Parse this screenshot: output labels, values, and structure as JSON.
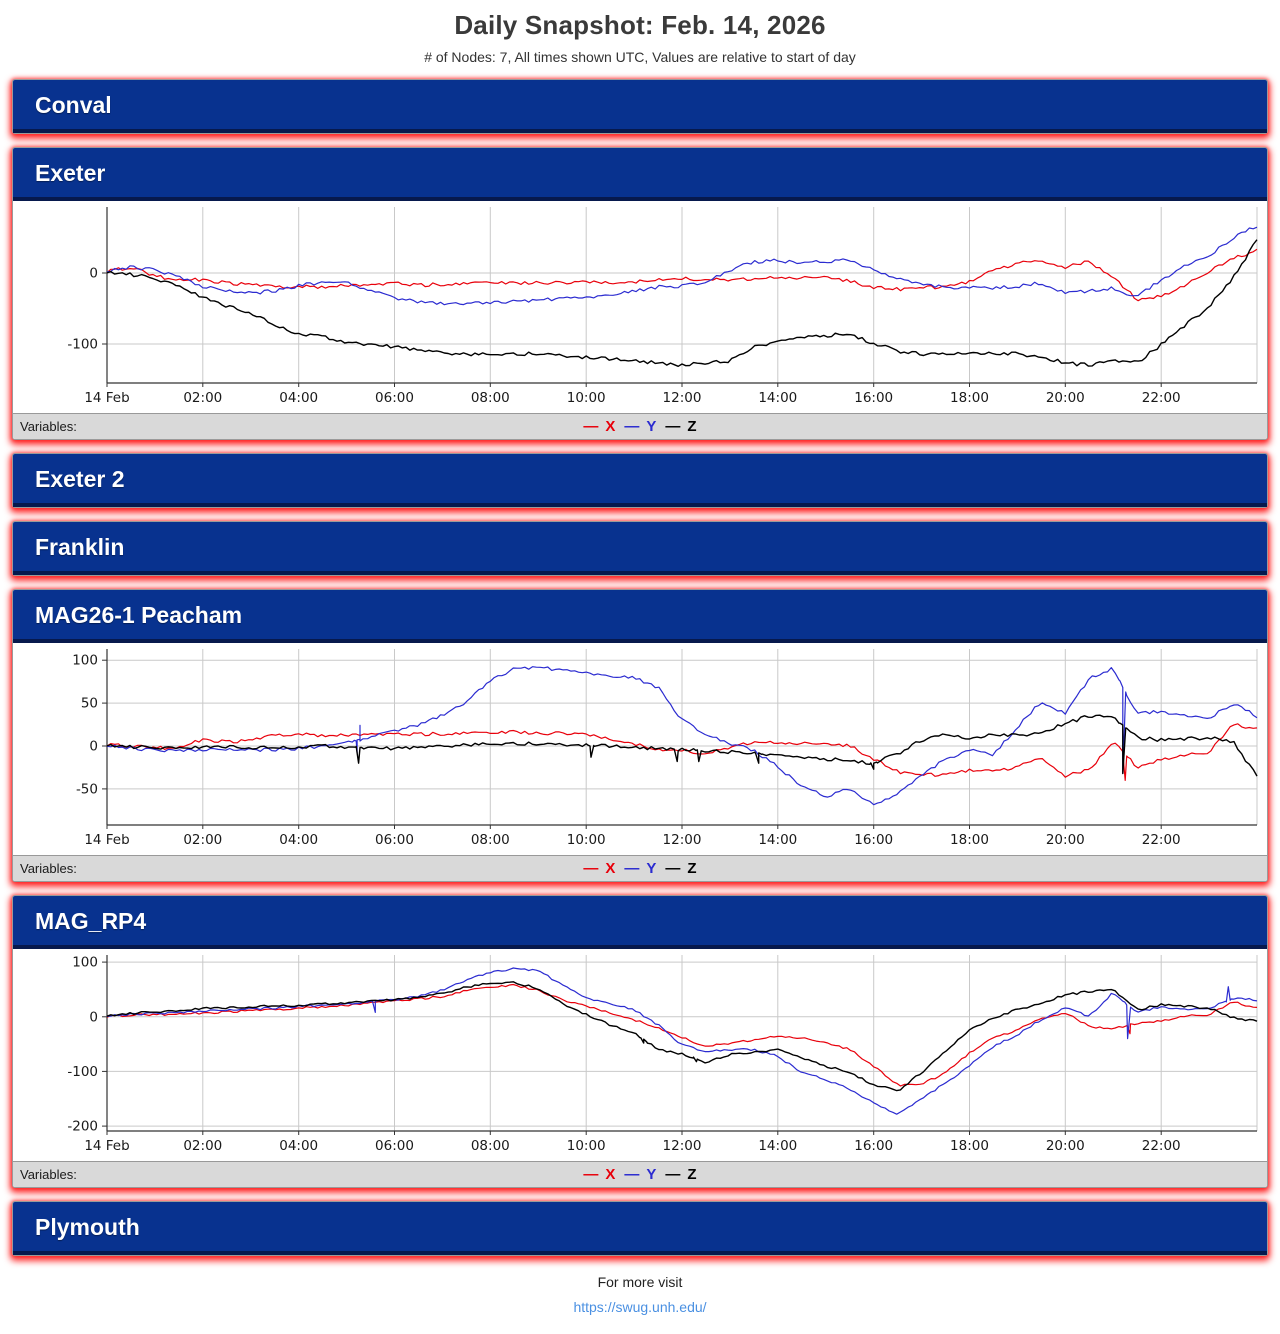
{
  "header": {
    "title": "Daily Snapshot: Feb. 14, 2026",
    "subtitle": "# of Nodes: 7, All times shown UTC, Values are relative to start of day"
  },
  "variables_label": "Variables:",
  "legend": [
    {
      "dash": "—",
      "label": "X",
      "color": "#e8000b"
    },
    {
      "dash": "—",
      "label": "Y",
      "color": "#2b2bd0"
    },
    {
      "dash": "—",
      "label": "Z",
      "color": "#000000"
    }
  ],
  "colors": {
    "header_navy": "#08328f",
    "header_strip": "#07194d",
    "glow_red": "#ff0000",
    "grid": "#c9c9c9",
    "spine": "#333333",
    "link_blue": "#4a90e2"
  },
  "panels": [
    {
      "name": "Conval",
      "collapsed": true
    },
    {
      "name": "Exeter",
      "collapsed": false,
      "chart_index": 0
    },
    {
      "name": "Exeter 2",
      "collapsed": true
    },
    {
      "name": "Franklin",
      "collapsed": true
    },
    {
      "name": "MAG26-1 Peacham",
      "collapsed": false,
      "chart_index": 1
    },
    {
      "name": "MAG_RP4",
      "collapsed": false,
      "chart_index": 2
    },
    {
      "name": "Plymouth",
      "collapsed": true
    }
  ],
  "footer": {
    "text": "For more visit",
    "link": "https://swug.unh.edu/"
  },
  "chart_data": [
    {
      "type": "line",
      "node": "Exeter",
      "xlabel": "",
      "ylabel": "",
      "x_start_hour": 0,
      "x_step_hours": 0.5,
      "xticks": [
        {
          "hour": 0,
          "label": "14 Feb"
        },
        {
          "hour": 2,
          "label": "02:00"
        },
        {
          "hour": 4,
          "label": "04:00"
        },
        {
          "hour": 6,
          "label": "06:00"
        },
        {
          "hour": 8,
          "label": "08:00"
        },
        {
          "hour": 10,
          "label": "10:00"
        },
        {
          "hour": 12,
          "label": "12:00"
        },
        {
          "hour": 14,
          "label": "14:00"
        },
        {
          "hour": 16,
          "label": "16:00"
        },
        {
          "hour": 18,
          "label": "18:00"
        },
        {
          "hour": 20,
          "label": "20:00"
        },
        {
          "hour": 22,
          "label": "22:00"
        }
      ],
      "yticks": [
        0,
        -100
      ],
      "ylim": [
        -155,
        93
      ],
      "noise_amplitude": 2.5,
      "series": [
        {
          "name": "X",
          "color": "#e8000b",
          "values": [
            3,
            8,
            -4,
            -10,
            -9,
            -14,
            -17,
            -19,
            -19,
            -20,
            -17,
            -18,
            -15,
            -17,
            -16,
            -15,
            -12,
            -14,
            -13,
            -14,
            -13,
            -14,
            -12,
            -10,
            -8,
            -9,
            -9,
            -8,
            -7,
            -7,
            -6,
            -12,
            -20,
            -23,
            -21,
            -19,
            -12,
            3,
            14,
            18,
            8,
            16,
            -5,
            -38,
            -33,
            -18,
            3,
            20,
            32
          ]
        },
        {
          "name": "Y",
          "color": "#2b2bd0",
          "values": [
            2,
            8,
            4,
            -6,
            -20,
            -25,
            -29,
            -25,
            -18,
            -13,
            -12,
            -25,
            -35,
            -40,
            -43,
            -42,
            -41,
            -40,
            -38,
            -36,
            -35,
            -30,
            -25,
            -20,
            -19,
            -12,
            4,
            16,
            18,
            14,
            16,
            18,
            5,
            -7,
            -17,
            -20,
            -21,
            -21,
            -19,
            -14,
            -29,
            -25,
            -21,
            -34,
            -9,
            10,
            25,
            50,
            67
          ]
        },
        {
          "name": "Z",
          "color": "#000000",
          "values": [
            0,
            -2,
            -8,
            -18,
            -34,
            -47,
            -56,
            -74,
            -85,
            -90,
            -97,
            -101,
            -104,
            -108,
            -112,
            -115,
            -115,
            -114,
            -113,
            -116,
            -119,
            -121,
            -124,
            -127,
            -130,
            -127,
            -124,
            -105,
            -97,
            -90,
            -88,
            -86,
            -99,
            -110,
            -114,
            -114,
            -113,
            -113,
            -114,
            -118,
            -127,
            -130,
            -124,
            -126,
            -101,
            -74,
            -47,
            -7,
            47
          ]
        }
      ]
    },
    {
      "type": "line",
      "node": "MAG26-1 Peacham",
      "xlabel": "",
      "ylabel": "",
      "x_start_hour": 0,
      "x_step_hours": 0.5,
      "xticks": [
        {
          "hour": 0,
          "label": "14 Feb"
        },
        {
          "hour": 2,
          "label": "02:00"
        },
        {
          "hour": 4,
          "label": "04:00"
        },
        {
          "hour": 6,
          "label": "06:00"
        },
        {
          "hour": 8,
          "label": "08:00"
        },
        {
          "hour": 10,
          "label": "10:00"
        },
        {
          "hour": 12,
          "label": "12:00"
        },
        {
          "hour": 14,
          "label": "14:00"
        },
        {
          "hour": 16,
          "label": "16:00"
        },
        {
          "hour": 18,
          "label": "18:00"
        },
        {
          "hour": 20,
          "label": "20:00"
        },
        {
          "hour": 22,
          "label": "22:00"
        }
      ],
      "yticks": [
        100,
        50,
        0,
        -50
      ],
      "ylim": [
        -92,
        113
      ],
      "noise_amplitude": 2,
      "series": [
        {
          "name": "X",
          "color": "#e8000b",
          "values": [
            2,
            0,
            -2,
            -2,
            8,
            5,
            6,
            13,
            14,
            12,
            13,
            13,
            13,
            14,
            14,
            15,
            16,
            17,
            15,
            15,
            13,
            8,
            3,
            -5,
            -5,
            -9,
            -1,
            5,
            3,
            3,
            2,
            0,
            -15,
            -30,
            -34,
            -33,
            -28,
            -30,
            -24,
            -13,
            -35,
            -28,
            6,
            -25,
            -16,
            -11,
            -7,
            25,
            20
          ],
          "spikes": [
            {
              "h": 21.25,
              "v": -40
            }
          ]
        },
        {
          "name": "Y",
          "color": "#2b2bd0",
          "values": [
            0,
            -3,
            -5,
            -6,
            -5,
            -4,
            -5,
            -4,
            -3,
            0,
            5,
            10,
            18,
            25,
            36,
            52,
            77,
            90,
            92,
            88,
            85,
            82,
            80,
            68,
            30,
            14,
            3,
            -5,
            -24,
            -47,
            -59,
            -50,
            -68,
            -55,
            -35,
            -15,
            -5,
            -10,
            22,
            52,
            37,
            79,
            91,
            37,
            41,
            35,
            33,
            50,
            35
          ],
          "spikes": [
            {
              "h": 5.22,
              "v": -8
            },
            {
              "h": 5.28,
              "v": 24
            },
            {
              "h": 21.2,
              "v": -32
            }
          ]
        },
        {
          "name": "Z",
          "color": "#000000",
          "values": [
            0,
            -1,
            -2,
            -2,
            -1,
            -1,
            -2,
            -2,
            -1,
            0,
            -1,
            -2,
            -3,
            -1,
            0,
            1,
            2,
            3,
            3,
            2,
            1,
            0,
            -2,
            -3,
            -4,
            -6,
            -7,
            -9,
            -11,
            -13,
            -15,
            -17,
            -20,
            -9,
            7,
            14,
            8,
            14,
            12,
            16,
            26,
            35,
            33,
            10,
            7,
            8,
            10,
            5,
            -35
          ],
          "spikes": [
            {
              "h": 5.25,
              "v": -20
            },
            {
              "h": 10.1,
              "v": -13
            },
            {
              "h": 11.9,
              "v": -18
            },
            {
              "h": 12.35,
              "v": -18
            },
            {
              "h": 13.6,
              "v": -20
            },
            {
              "h": 16.0,
              "v": -27
            },
            {
              "h": 21.2,
              "v": -32
            }
          ]
        }
      ]
    },
    {
      "type": "line",
      "node": "MAG_RP4",
      "xlabel": "",
      "ylabel": "",
      "x_start_hour": 0,
      "x_step_hours": 0.5,
      "xticks": [
        {
          "hour": 0,
          "label": "14 Feb"
        },
        {
          "hour": 2,
          "label": "02:00"
        },
        {
          "hour": 4,
          "label": "04:00"
        },
        {
          "hour": 6,
          "label": "06:00"
        },
        {
          "hour": 8,
          "label": "08:00"
        },
        {
          "hour": 10,
          "label": "10:00"
        },
        {
          "hour": 12,
          "label": "12:00"
        },
        {
          "hour": 14,
          "label": "14:00"
        },
        {
          "hour": 16,
          "label": "16:00"
        },
        {
          "hour": 18,
          "label": "18:00"
        },
        {
          "hour": 20,
          "label": "20:00"
        },
        {
          "hour": 22,
          "label": "22:00"
        }
      ],
      "yticks": [
        100,
        0,
        -100,
        -200
      ],
      "ylim": [
        -209,
        113
      ],
      "noise_amplitude": 2,
      "series": [
        {
          "name": "X",
          "color": "#e8000b",
          "values": [
            1,
            3,
            4,
            5,
            7,
            9,
            11,
            13,
            16,
            18,
            21,
            25,
            28,
            33,
            37,
            48,
            55,
            58,
            49,
            31,
            19,
            7,
            -5,
            -21,
            -38,
            -54,
            -48,
            -42,
            -36,
            -39,
            -48,
            -60,
            -90,
            -125,
            -124,
            -102,
            -66,
            -39,
            -24,
            -2,
            7,
            -18,
            -21,
            -12,
            -8,
            1,
            4,
            27,
            16
          ],
          "spikes": [
            {
              "h": 21.35,
              "v": -31
            }
          ]
        },
        {
          "name": "Y",
          "color": "#2b2bd0",
          "values": [
            1,
            4,
            6,
            7,
            10,
            12,
            14,
            16,
            19,
            21,
            24,
            28,
            31,
            38,
            49,
            68,
            82,
            88,
            85,
            58,
            34,
            25,
            13,
            -15,
            -52,
            -63,
            -60,
            -60,
            -72,
            -102,
            -115,
            -133,
            -157,
            -178,
            -151,
            -121,
            -90,
            -54,
            -33,
            -5,
            16,
            1,
            45,
            7,
            19,
            13,
            16,
            34,
            31
          ],
          "spikes": [
            {
              "h": 5.6,
              "v": 8
            },
            {
              "h": 21.3,
              "v": -40
            },
            {
              "h": 23.4,
              "v": 55
            }
          ]
        },
        {
          "name": "Z",
          "color": "#000000",
          "values": [
            1,
            6,
            9,
            11,
            16,
            16,
            18,
            20,
            21,
            23,
            26,
            29,
            31,
            36,
            43,
            54,
            61,
            63,
            52,
            25,
            4,
            -15,
            -30,
            -60,
            -68,
            -84,
            -69,
            -66,
            -60,
            -75,
            -90,
            -102,
            -124,
            -136,
            -102,
            -63,
            -24,
            -2,
            13,
            25,
            40,
            46,
            49,
            13,
            22,
            19,
            16,
            -2,
            -8
          ],
          "spikes": [
            {
              "h": 11.2,
              "v": -48
            },
            {
              "h": 12.3,
              "v": -82
            }
          ]
        }
      ]
    }
  ]
}
